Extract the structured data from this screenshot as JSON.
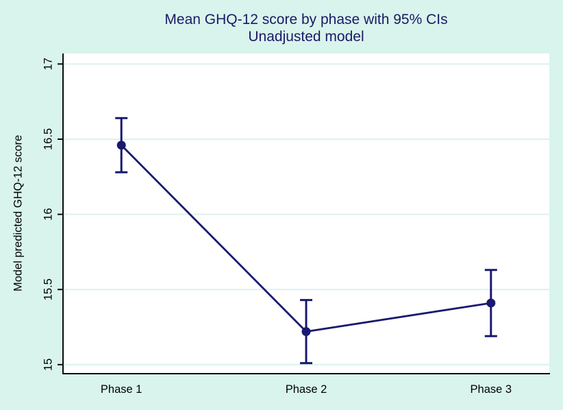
{
  "colors": {
    "figure_background": "#d9f4ec",
    "plot_background": "#ffffff",
    "gridline": "#dcf2ee",
    "axis_line": "#0a0a0a",
    "tick_label": "#000000",
    "title_text": "#1a1a66",
    "series_navy": "#191970"
  },
  "chart_data": {
    "type": "line",
    "title": "Mean GHQ-12 score by phase with 95% CIs",
    "subtitle": "Unadjusted model",
    "ylabel": "Model predicted GHQ-12 score",
    "xlabel": "",
    "categories": [
      "Phase 1",
      "Phase 2",
      "Phase 3"
    ],
    "series": [
      {
        "name": "Model predicted GHQ-12 score",
        "values": [
          16.46,
          15.22,
          15.41
        ],
        "ci_low": [
          16.28,
          15.01,
          15.19
        ],
        "ci_high": [
          16.64,
          15.43,
          15.63
        ]
      }
    ],
    "error_bars": "95% confidence intervals",
    "ylim": [
      14.94,
      17.07
    ],
    "yticks": [
      15,
      15.5,
      16,
      16.5,
      17
    ],
    "ytick_labels": [
      "15",
      "15.5",
      "16",
      "16.5",
      "17"
    ],
    "ytick_angle_deg": -90,
    "grid": true,
    "legend_position": "none",
    "marker": "filled-circle"
  }
}
